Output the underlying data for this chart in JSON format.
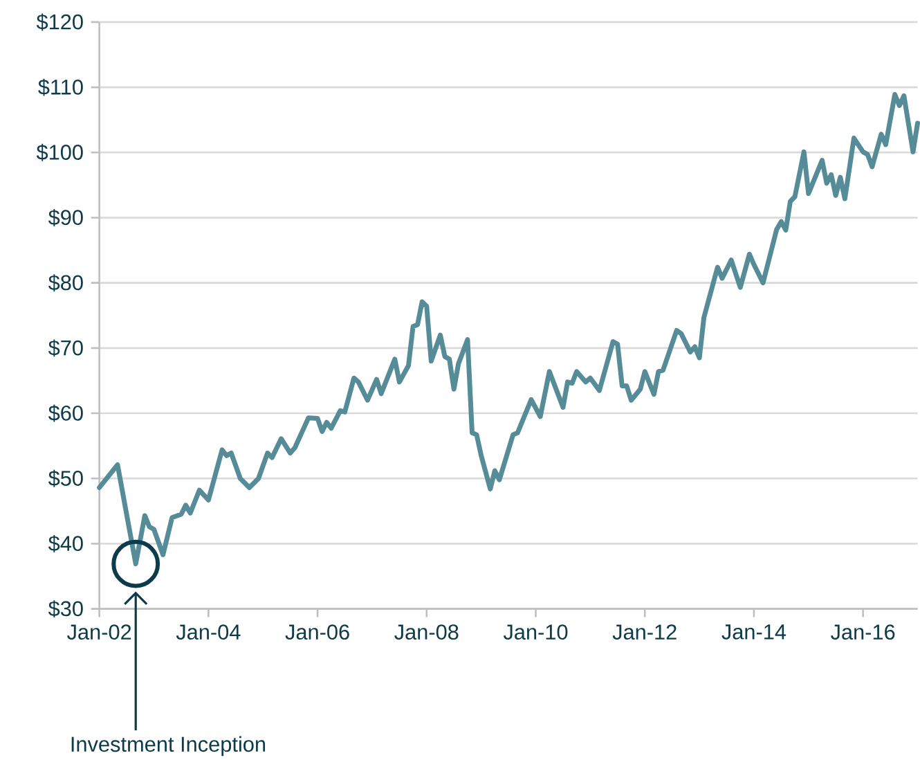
{
  "chart_data": {
    "type": "line",
    "color": "#568b98",
    "line_style": "solid",
    "grid": "y",
    "xlim": [
      "2002-01",
      "2017-01"
    ],
    "xticks": [
      {
        "value": "2002-01",
        "label": "Jan-02"
      },
      {
        "value": "2004-01",
        "label": "Jan-04"
      },
      {
        "value": "2006-01",
        "label": "Jan-06"
      },
      {
        "value": "2008-01",
        "label": "Jan-08"
      },
      {
        "value": "2010-01",
        "label": "Jan-10"
      },
      {
        "value": "2012-01",
        "label": "Jan-12"
      },
      {
        "value": "2014-01",
        "label": "Jan-14"
      },
      {
        "value": "2016-01",
        "label": "Jan-16"
      }
    ],
    "ylim": [
      30,
      120
    ],
    "yticks": [
      {
        "value": 30,
        "label": "$30"
      },
      {
        "value": 40,
        "label": "$40"
      },
      {
        "value": 50,
        "label": "$50"
      },
      {
        "value": 60,
        "label": "$60"
      },
      {
        "value": 70,
        "label": "$70"
      },
      {
        "value": 80,
        "label": "$80"
      },
      {
        "value": 90,
        "label": "$90"
      },
      {
        "value": 100,
        "label": "$100"
      },
      {
        "value": 110,
        "label": "$110"
      },
      {
        "value": 120,
        "label": "$120"
      }
    ],
    "x": [
      "2002-01",
      "2002-05",
      "2002-09",
      "2002-11",
      "2002-12",
      "2003-01",
      "2003-03",
      "2003-05",
      "2003-07",
      "2003-08",
      "2003-09",
      "2003-11",
      "2004-01",
      "2004-04",
      "2004-05",
      "2004-06",
      "2004-08",
      "2004-10",
      "2004-12",
      "2005-02",
      "2005-03",
      "2005-05",
      "2005-07",
      "2005-08",
      "2005-11",
      "2006-01",
      "2006-02",
      "2006-03",
      "2006-04",
      "2006-06",
      "2006-07",
      "2006-09",
      "2006-10",
      "2006-12",
      "2007-02",
      "2007-03",
      "2007-06",
      "2007-07",
      "2007-09",
      "2007-10",
      "2007-11",
      "2007-12",
      "2008-01",
      "2008-02",
      "2008-04",
      "2008-05",
      "2008-06",
      "2008-07",
      "2008-08",
      "2008-10",
      "2008-11",
      "2008-12",
      "2009-01",
      "2009-03",
      "2009-04",
      "2009-05",
      "2009-08",
      "2009-09",
      "2009-12",
      "2010-02",
      "2010-04",
      "2010-07",
      "2010-08",
      "2010-09",
      "2010-10",
      "2010-12",
      "2011-01",
      "2011-03",
      "2011-06",
      "2011-07",
      "2011-08",
      "2011-09",
      "2011-10",
      "2011-12",
      "2012-01",
      "2012-03",
      "2012-04",
      "2012-05",
      "2012-08",
      "2012-09",
      "2012-11",
      "2012-12",
      "2013-01",
      "2013-02",
      "2013-05",
      "2013-06",
      "2013-08",
      "2013-10",
      "2013-12",
      "2014-01",
      "2014-03",
      "2014-06",
      "2014-07",
      "2014-08",
      "2014-09",
      "2014-10",
      "2014-12",
      "2015-01",
      "2015-04",
      "2015-05",
      "2015-06",
      "2015-07",
      "2015-08",
      "2015-09",
      "2015-11",
      "2016-01",
      "2016-02",
      "2016-03",
      "2016-05",
      "2016-06",
      "2016-08",
      "2016-09",
      "2016-10",
      "2016-12",
      "2017-01"
    ],
    "values": [
      48.6,
      52.1,
      36.9,
      44.3,
      42.6,
      42.2,
      38.3,
      44.0,
      44.5,
      45.9,
      44.7,
      48.2,
      46.7,
      54.4,
      53.5,
      53.9,
      50.0,
      48.6,
      50.0,
      53.9,
      53.2,
      56.1,
      53.9,
      54.7,
      59.3,
      59.2,
      57.2,
      58.6,
      57.7,
      60.4,
      60.2,
      65.4,
      64.8,
      62.0,
      65.2,
      63.0,
      68.3,
      64.8,
      67.3,
      73.3,
      73.6,
      77.1,
      76.4,
      68.0,
      72.0,
      68.7,
      68.3,
      63.7,
      67.6,
      71.3,
      57.0,
      56.7,
      53.5,
      48.4,
      51.2,
      49.8,
      56.7,
      57.0,
      62.1,
      59.5,
      66.4,
      60.9,
      64.8,
      64.6,
      66.4,
      64.8,
      65.4,
      63.5,
      71.0,
      70.6,
      64.2,
      64.2,
      62.0,
      63.7,
      66.4,
      62.9,
      66.4,
      66.6,
      72.7,
      72.2,
      69.4,
      70.2,
      68.5,
      74.7,
      82.4,
      80.7,
      83.5,
      79.3,
      84.4,
      82.8,
      80.0,
      88.2,
      89.4,
      88.1,
      92.5,
      93.2,
      100.1,
      93.7,
      98.8,
      95.3,
      96.6,
      93.4,
      96.2,
      92.9,
      102.2,
      100.1,
      99.7,
      97.8,
      102.8,
      101.2,
      108.9,
      107.2,
      108.7,
      100.1,
      104.5
    ],
    "annotations": [
      "Investment Inception"
    ]
  }
}
